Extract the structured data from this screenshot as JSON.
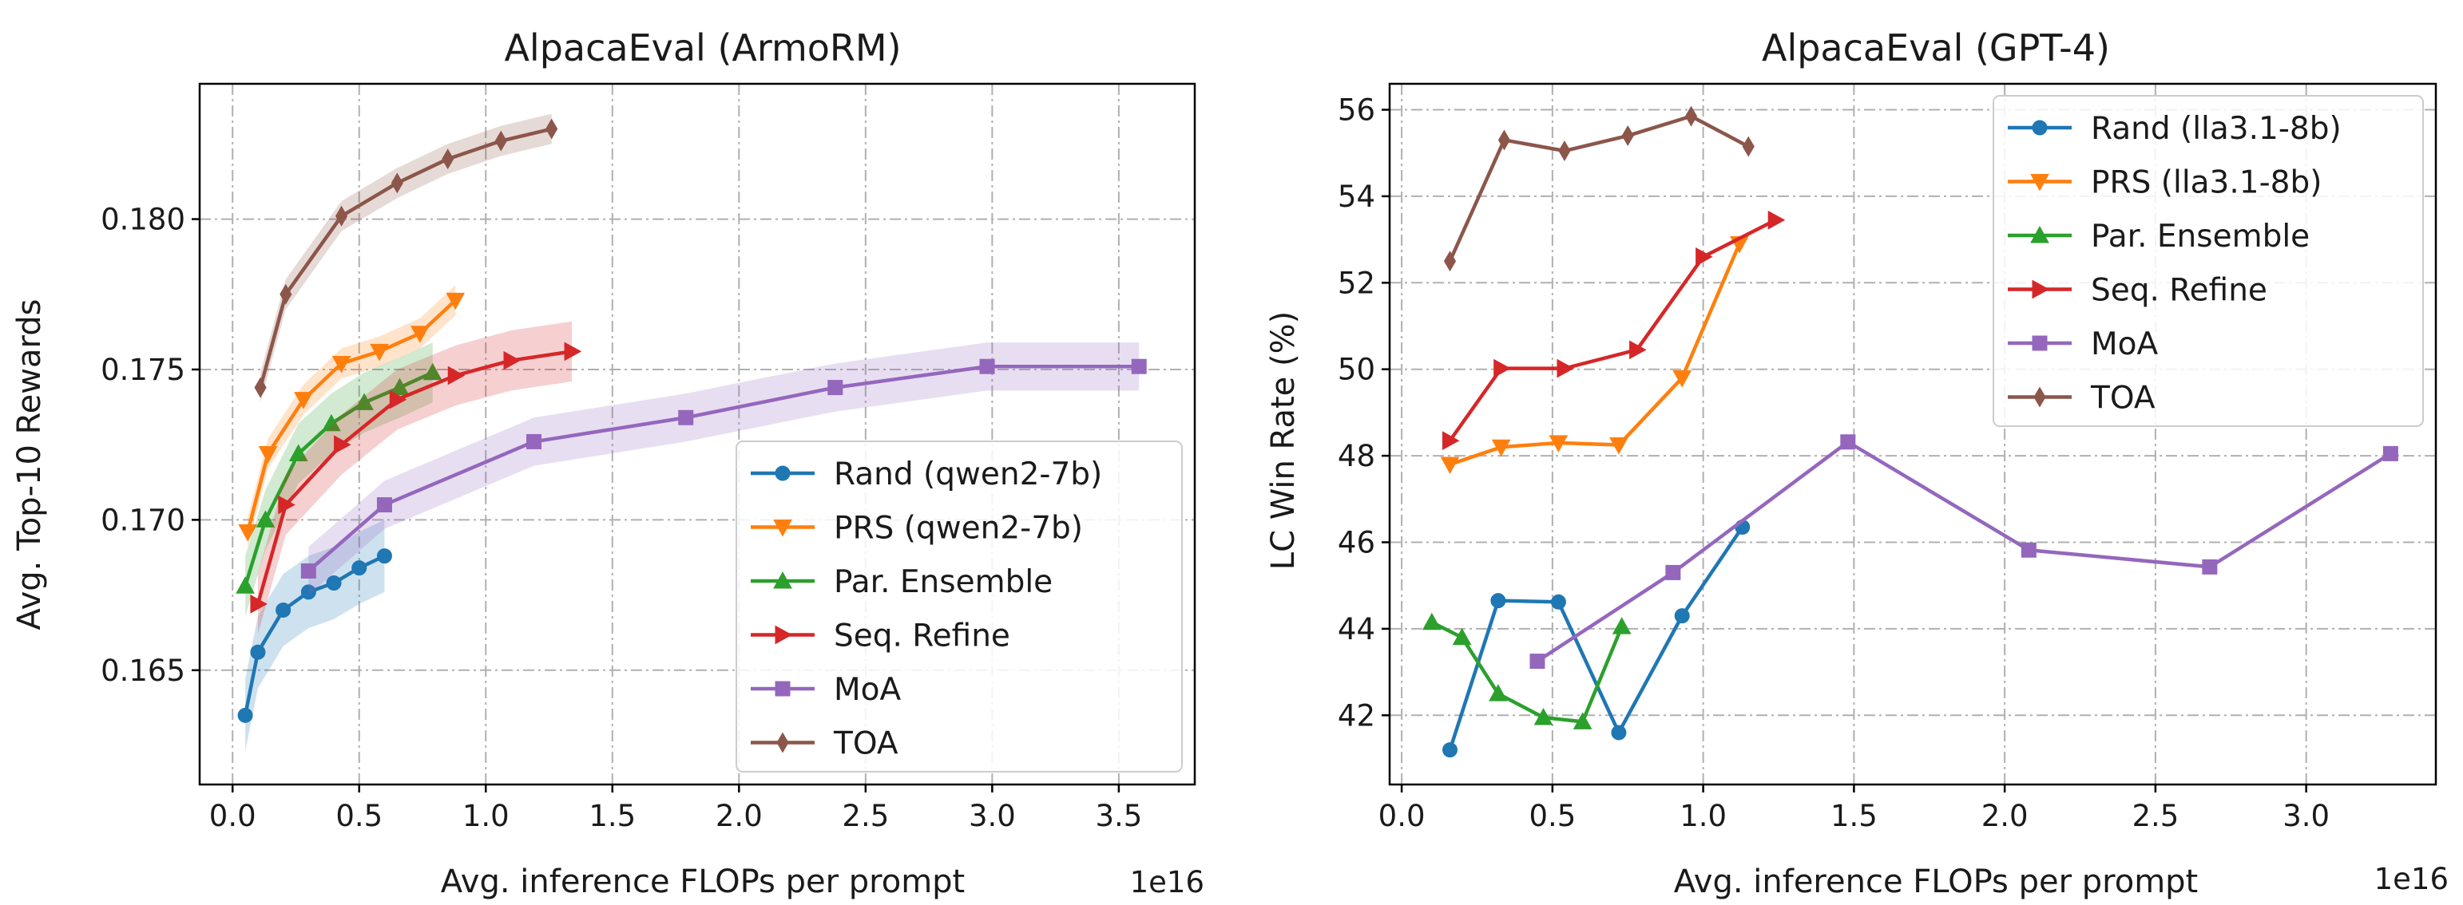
{
  "colors": {
    "blue": "#1f77b4",
    "orange": "#ff7f0e",
    "green": "#2ca02c",
    "red": "#d62728",
    "purple": "#9467bd",
    "brown": "#8c564b"
  },
  "chart_data": [
    {
      "type": "line",
      "title": "AlpacaEval (ArmoRM)",
      "xlabel": "Avg. inference FLOPs per prompt",
      "ylabel": "Avg. Top-10 Rewards",
      "x_multiplier_label": "1e16",
      "xlim": [
        -0.13,
        3.8
      ],
      "ylim": [
        0.1612,
        0.1845
      ],
      "xticks": [
        0.0,
        0.5,
        1.0,
        1.5,
        2.0,
        2.5,
        3.0,
        3.5
      ],
      "xtick_labels": [
        "0.0",
        "0.5",
        "1.0",
        "1.5",
        "2.0",
        "2.5",
        "3.0",
        "3.5"
      ],
      "yticks": [
        0.165,
        0.17,
        0.175,
        0.18
      ],
      "ytick_labels": [
        "0.165",
        "0.170",
        "0.175",
        "0.180"
      ],
      "grid": true,
      "legend_position": "lower-right",
      "shaded_bands": true,
      "series": [
        {
          "name": "Rand (qwen2-7b)",
          "color": "blue",
          "marker": "circle",
          "x": [
            0.05,
            0.1,
            0.2,
            0.3,
            0.4,
            0.5,
            0.6
          ],
          "y": [
            0.1635,
            0.1656,
            0.167,
            0.1676,
            0.1679,
            0.1684,
            0.1688
          ],
          "band": 0.0012
        },
        {
          "name": "PRS (qwen2-7b)",
          "color": "orange",
          "marker": "triangle-down",
          "x": [
            0.06,
            0.14,
            0.28,
            0.43,
            0.58,
            0.74,
            0.88
          ],
          "y": [
            0.1696,
            0.1722,
            0.174,
            0.1752,
            0.1756,
            0.1762,
            0.1773
          ],
          "band": 0.0005
        },
        {
          "name": "Par. Ensemble",
          "color": "green",
          "marker": "triangle-up",
          "x": [
            0.05,
            0.13,
            0.26,
            0.39,
            0.52,
            0.66,
            0.79
          ],
          "y": [
            0.1678,
            0.17,
            0.1722,
            0.1732,
            0.1739,
            0.1744,
            0.1749
          ],
          "band": 0.001
        },
        {
          "name": "Seq. Refine",
          "color": "red",
          "marker": "triangle-right",
          "x": [
            0.1,
            0.21,
            0.43,
            0.65,
            0.88,
            1.1,
            1.34
          ],
          "y": [
            0.1672,
            0.1705,
            0.1725,
            0.174,
            0.1748,
            0.1753,
            0.1756
          ],
          "band": 0.001
        },
        {
          "name": "MoA",
          "color": "purple",
          "marker": "square",
          "x": [
            0.3,
            0.6,
            1.19,
            1.79,
            2.38,
            2.98,
            3.58
          ],
          "y": [
            0.1683,
            0.1705,
            0.1726,
            0.1734,
            0.1744,
            0.1751,
            0.1751
          ],
          "band": 0.0008
        },
        {
          "name": "TOA",
          "color": "brown",
          "marker": "diamond",
          "x": [
            0.11,
            0.21,
            0.43,
            0.65,
            0.85,
            1.06,
            1.26
          ],
          "y": [
            0.1744,
            0.1775,
            0.1801,
            0.1812,
            0.182,
            0.1826,
            0.183
          ],
          "band": 0.0005
        }
      ]
    },
    {
      "type": "line",
      "title": "AlpacaEval (GPT-4)",
      "xlabel": "Avg. inference FLOPs per prompt",
      "ylabel": "LC Win Rate (%)",
      "x_multiplier_label": "1e16",
      "xlim": [
        -0.04,
        3.43
      ],
      "ylim": [
        40.4,
        56.6
      ],
      "xticks": [
        0.0,
        0.5,
        1.0,
        1.5,
        2.0,
        2.5,
        3.0
      ],
      "xtick_labels": [
        "0.0",
        "0.5",
        "1.0",
        "1.5",
        "2.0",
        "2.5",
        "3.0"
      ],
      "yticks": [
        42,
        44,
        46,
        48,
        50,
        52,
        54,
        56
      ],
      "ytick_labels": [
        "42",
        "44",
        "46",
        "48",
        "50",
        "52",
        "54",
        "56"
      ],
      "grid": true,
      "legend_position": "upper-right",
      "shaded_bands": false,
      "series": [
        {
          "name": "Rand (lla3.1-8b)",
          "color": "blue",
          "marker": "circle",
          "x": [
            0.16,
            0.32,
            0.52,
            0.72,
            0.93,
            1.13
          ],
          "y": [
            41.2,
            44.65,
            44.62,
            41.6,
            44.3,
            46.35
          ]
        },
        {
          "name": "PRS (lla3.1-8b)",
          "color": "orange",
          "marker": "triangle-down",
          "x": [
            0.16,
            0.33,
            0.52,
            0.72,
            0.93,
            1.12
          ],
          "y": [
            47.8,
            48.2,
            48.3,
            48.25,
            49.8,
            52.9
          ]
        },
        {
          "name": "Par. Ensemble",
          "color": "green",
          "marker": "triangle-up",
          "x": [
            0.1,
            0.2,
            0.32,
            0.47,
            0.6,
            0.73
          ],
          "y": [
            44.15,
            43.8,
            42.5,
            41.95,
            41.85,
            44.05
          ]
        },
        {
          "name": "Seq. Refine",
          "color": "red",
          "marker": "triangle-right",
          "x": [
            0.16,
            0.33,
            0.54,
            0.78,
            1.0,
            1.24
          ],
          "y": [
            48.35,
            50.02,
            50.02,
            50.45,
            52.6,
            53.45
          ]
        },
        {
          "name": "MoA",
          "color": "purple",
          "marker": "square",
          "x": [
            0.45,
            0.9,
            1.48,
            2.08,
            2.68,
            3.28
          ],
          "y": [
            43.25,
            45.3,
            48.32,
            45.82,
            45.43,
            48.05
          ]
        },
        {
          "name": "TOA",
          "color": "brown",
          "marker": "diamond",
          "x": [
            0.16,
            0.34,
            0.54,
            0.75,
            0.96,
            1.15
          ],
          "y": [
            52.5,
            55.3,
            55.05,
            55.4,
            55.85,
            55.15
          ]
        }
      ]
    }
  ]
}
